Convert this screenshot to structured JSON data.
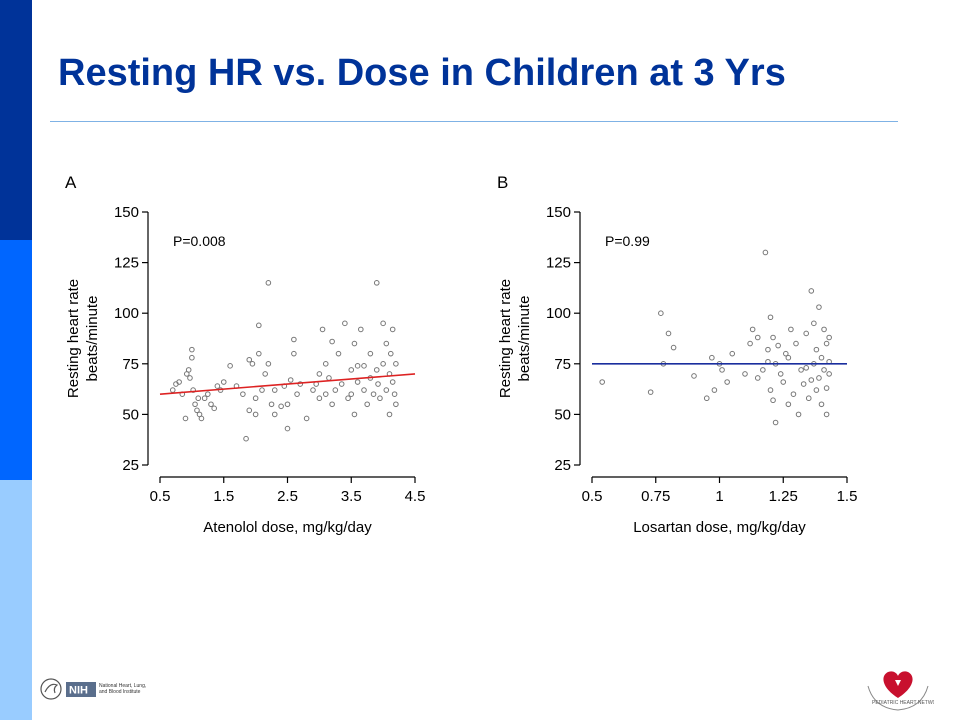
{
  "slide": {
    "title": "Resting HR vs. Dose in Children at 3 Yrs"
  },
  "colors": {
    "title": "#003399",
    "band_dark": "#003399",
    "band_mid": "#0066ff",
    "band_light": "#99ccff",
    "atenolol_fit": "#dd2222",
    "losartan_fit": "#1a2e9e",
    "points": "#777777"
  },
  "chart_data": [
    {
      "type": "scatter",
      "panel_label": "A",
      "annotation": "P=0.008",
      "xlabel": "Atenolol dose, mg/kg/day",
      "ylabel": [
        "Resting heart rate",
        "beats/minute"
      ],
      "xlim": [
        0.5,
        4.5
      ],
      "ylim": [
        25,
        150
      ],
      "xticks": [
        "0.5",
        "1.5",
        "2.5",
        "3.5",
        "4.5"
      ],
      "yticks": [
        "25",
        "50",
        "75",
        "100",
        "125",
        "150"
      ],
      "grid": false,
      "fit_line": {
        "x": [
          0.5,
          4.5
        ],
        "y": [
          60,
          70
        ]
      },
      "points": [
        [
          0.7,
          62
        ],
        [
          0.75,
          65
        ],
        [
          0.8,
          66
        ],
        [
          0.85,
          60
        ],
        [
          0.9,
          48
        ],
        [
          0.92,
          70
        ],
        [
          0.95,
          72
        ],
        [
          0.97,
          68
        ],
        [
          1.0,
          82
        ],
        [
          1.0,
          78
        ],
        [
          1.02,
          62
        ],
        [
          1.05,
          55
        ],
        [
          1.08,
          52
        ],
        [
          1.1,
          58
        ],
        [
          1.12,
          50
        ],
        [
          1.15,
          48
        ],
        [
          1.2,
          58
        ],
        [
          1.25,
          60
        ],
        [
          1.3,
          55
        ],
        [
          1.35,
          53
        ],
        [
          1.4,
          64
        ],
        [
          1.45,
          62
        ],
        [
          1.5,
          66
        ],
        [
          1.6,
          74
        ],
        [
          1.7,
          64
        ],
        [
          1.8,
          60
        ],
        [
          1.85,
          38
        ],
        [
          1.9,
          52
        ],
        [
          1.9,
          77
        ],
        [
          1.95,
          75
        ],
        [
          2.0,
          58
        ],
        [
          2.0,
          50
        ],
        [
          2.05,
          80
        ],
        [
          2.05,
          94
        ],
        [
          2.1,
          62
        ],
        [
          2.15,
          70
        ],
        [
          2.2,
          75
        ],
        [
          2.2,
          115
        ],
        [
          2.25,
          55
        ],
        [
          2.3,
          62
        ],
        [
          2.3,
          50
        ],
        [
          2.4,
          54
        ],
        [
          2.45,
          64
        ],
        [
          2.5,
          43
        ],
        [
          2.5,
          55
        ],
        [
          2.55,
          67
        ],
        [
          2.6,
          80
        ],
        [
          2.6,
          87
        ],
        [
          2.65,
          60
        ],
        [
          2.7,
          65
        ],
        [
          2.8,
          48
        ],
        [
          2.9,
          62
        ],
        [
          2.95,
          65
        ],
        [
          3.0,
          58
        ],
        [
          3.0,
          70
        ],
        [
          3.05,
          92
        ],
        [
          3.1,
          60
        ],
        [
          3.1,
          75
        ],
        [
          3.15,
          68
        ],
        [
          3.2,
          55
        ],
        [
          3.25,
          62
        ],
        [
          3.3,
          80
        ],
        [
          3.35,
          65
        ],
        [
          3.4,
          95
        ],
        [
          3.45,
          58
        ],
        [
          3.5,
          72
        ],
        [
          3.5,
          60
        ],
        [
          3.55,
          85
        ],
        [
          3.55,
          50
        ],
        [
          3.6,
          66
        ],
        [
          3.65,
          92
        ],
        [
          3.7,
          62
        ],
        [
          3.7,
          74
        ],
        [
          3.75,
          55
        ],
        [
          3.8,
          68
        ],
        [
          3.8,
          80
        ],
        [
          3.85,
          60
        ],
        [
          3.9,
          115
        ],
        [
          3.9,
          72
        ],
        [
          3.92,
          65
        ],
        [
          3.95,
          58
        ],
        [
          4.0,
          75
        ],
        [
          4.0,
          95
        ],
        [
          4.05,
          62
        ],
        [
          4.05,
          85
        ],
        [
          4.1,
          70
        ],
        [
          4.1,
          50
        ],
        [
          4.12,
          80
        ],
        [
          4.15,
          66
        ],
        [
          4.15,
          92
        ],
        [
          4.18,
          60
        ],
        [
          4.2,
          75
        ],
        [
          4.2,
          55
        ],
        [
          3.2,
          86
        ],
        [
          3.6,
          74
        ]
      ]
    },
    {
      "type": "scatter",
      "panel_label": "B",
      "annotation": "P=0.99",
      "xlabel": "Losartan dose, mg/kg/day",
      "ylabel": [
        "Resting heart rate",
        "beats/minute"
      ],
      "xlim": [
        0.5,
        1.5
      ],
      "ylim": [
        25,
        150
      ],
      "xticks": [
        "0.5",
        "0.75",
        "1",
        "1.25",
        "1.5"
      ],
      "yticks": [
        "25",
        "50",
        "75",
        "100",
        "125",
        "150"
      ],
      "grid": false,
      "fit_line": {
        "x": [
          0.5,
          1.5
        ],
        "y": [
          75,
          75
        ]
      },
      "points": [
        [
          0.54,
          66
        ],
        [
          0.73,
          61
        ],
        [
          0.77,
          100
        ],
        [
          0.78,
          75
        ],
        [
          0.8,
          90
        ],
        [
          0.82,
          83
        ],
        [
          0.9,
          69
        ],
        [
          0.95,
          58
        ],
        [
          0.97,
          78
        ],
        [
          0.98,
          62
        ],
        [
          1.0,
          75
        ],
        [
          1.01,
          72
        ],
        [
          1.03,
          66
        ],
        [
          1.05,
          80
        ],
        [
          1.1,
          70
        ],
        [
          1.12,
          85
        ],
        [
          1.13,
          92
        ],
        [
          1.15,
          88
        ],
        [
          1.15,
          68
        ],
        [
          1.17,
          72
        ],
        [
          1.18,
          130
        ],
        [
          1.19,
          82
        ],
        [
          1.2,
          98
        ],
        [
          1.2,
          62
        ],
        [
          1.21,
          57
        ],
        [
          1.22,
          75
        ],
        [
          1.22,
          46
        ],
        [
          1.23,
          84
        ],
        [
          1.24,
          70
        ],
        [
          1.25,
          66
        ],
        [
          1.26,
          80
        ],
        [
          1.27,
          55
        ],
        [
          1.28,
          92
        ],
        [
          1.29,
          60
        ],
        [
          1.3,
          85
        ],
        [
          1.31,
          50
        ],
        [
          1.32,
          72
        ],
        [
          1.33,
          65
        ],
        [
          1.34,
          90
        ],
        [
          1.35,
          58
        ],
        [
          1.36,
          111
        ],
        [
          1.37,
          95
        ],
        [
          1.37,
          75
        ],
        [
          1.38,
          62
        ],
        [
          1.38,
          82
        ],
        [
          1.39,
          103
        ],
        [
          1.39,
          68
        ],
        [
          1.4,
          55
        ],
        [
          1.4,
          78
        ],
        [
          1.41,
          72
        ],
        [
          1.41,
          92
        ],
        [
          1.42,
          63
        ],
        [
          1.42,
          85
        ],
        [
          1.42,
          50
        ],
        [
          1.43,
          76
        ],
        [
          1.43,
          70
        ],
        [
          1.43,
          88
        ],
        [
          1.19,
          76
        ],
        [
          1.27,
          78
        ],
        [
          1.34,
          73
        ],
        [
          1.21,
          88
        ],
        [
          1.36,
          67
        ]
      ]
    }
  ]
}
